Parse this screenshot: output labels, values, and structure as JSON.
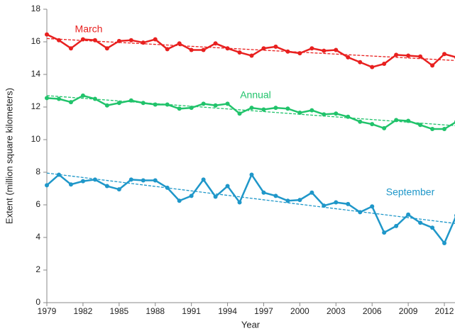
{
  "chart_data": {
    "type": "line",
    "x_label": "Year",
    "y_label": "Extent (million square kilometers)",
    "x": [
      1979,
      1980,
      1981,
      1982,
      1983,
      1984,
      1985,
      1986,
      1987,
      1988,
      1989,
      1990,
      1991,
      1992,
      1993,
      1994,
      1995,
      1996,
      1997,
      1998,
      1999,
      2000,
      2001,
      2002,
      2003,
      2004,
      2005,
      2006,
      2007,
      2008,
      2009,
      2010,
      2011,
      2012,
      2013
    ],
    "series": [
      {
        "name": "March",
        "color": "#e8201f",
        "trend": [
          16.2,
          14.85
        ],
        "values": [
          16.45,
          16.1,
          15.6,
          16.15,
          16.1,
          15.6,
          16.05,
          16.1,
          15.95,
          16.15,
          15.55,
          15.9,
          15.5,
          15.5,
          15.9,
          15.6,
          15.35,
          15.15,
          15.6,
          15.7,
          15.4,
          15.3,
          15.6,
          15.45,
          15.5,
          15.05,
          14.75,
          14.45,
          14.65,
          15.2,
          15.15,
          15.1,
          14.55,
          15.25,
          15.05
        ]
      },
      {
        "name": "Annual",
        "color": "#21c36b",
        "trend": [
          12.7,
          10.85
        ],
        "values": [
          12.55,
          12.5,
          12.3,
          12.7,
          12.5,
          12.1,
          12.25,
          12.4,
          12.25,
          12.15,
          12.15,
          11.9,
          11.95,
          12.2,
          12.1,
          12.2,
          11.6,
          11.95,
          11.85,
          11.95,
          11.9,
          11.65,
          11.8,
          11.55,
          11.6,
          11.4,
          11.1,
          10.95,
          10.7,
          11.2,
          11.15,
          10.9,
          10.65,
          10.65,
          11.1
        ]
      },
      {
        "name": "September",
        "color": "#1f97c9",
        "trend": [
          7.95,
          4.85
        ],
        "values": [
          7.2,
          7.85,
          7.25,
          7.45,
          7.55,
          7.15,
          6.95,
          7.55,
          7.5,
          7.5,
          7.05,
          6.25,
          6.55,
          7.55,
          6.5,
          7.15,
          6.15,
          7.85,
          6.75,
          6.55,
          6.25,
          6.3,
          6.75,
          5.95,
          6.15,
          6.05,
          5.55,
          5.9,
          4.3,
          4.7,
          5.4,
          4.9,
          4.6,
          3.65,
          5.35
        ]
      }
    ],
    "xlim": [
      1979,
      2013
    ],
    "xticks": [
      1979,
      1982,
      1985,
      1988,
      1991,
      1994,
      1997,
      2000,
      2003,
      2006,
      2009,
      2012
    ],
    "ylim": [
      0,
      18
    ],
    "yticks": [
      0,
      2,
      4,
      6,
      8,
      10,
      12,
      14,
      16,
      18
    ],
    "grid": false
  }
}
